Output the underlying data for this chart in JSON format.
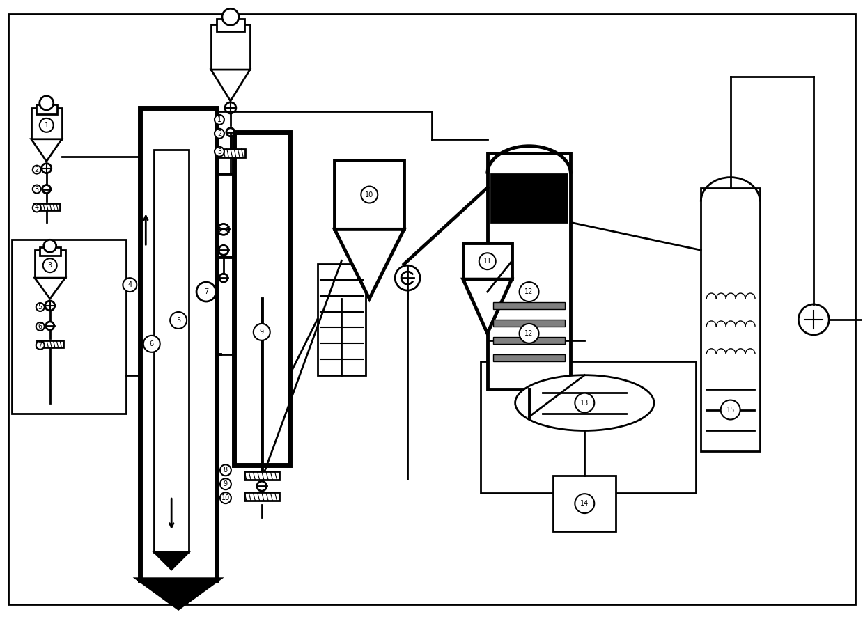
{
  "bg_color": "#ffffff",
  "line_color": "#000000",
  "lw_thin": 1.0,
  "lw_med": 2.0,
  "lw_thick": 3.5,
  "lw_xthick": 5.0,
  "fig_width": 12.39,
  "fig_height": 8.89
}
